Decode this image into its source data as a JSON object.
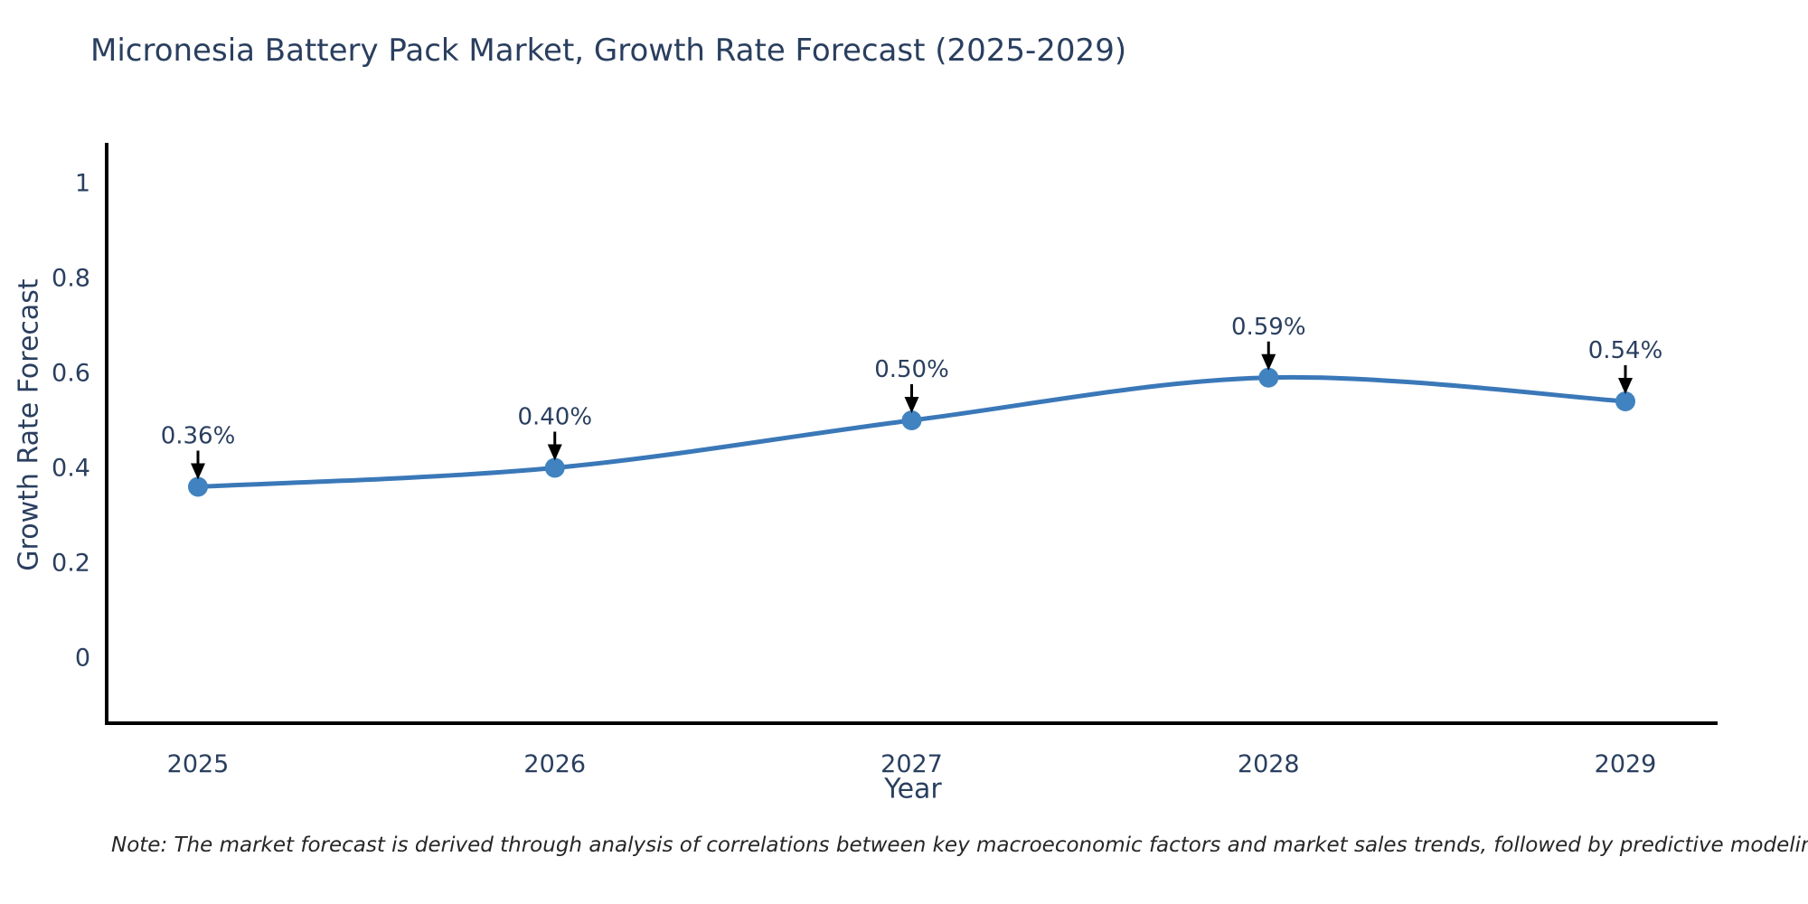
{
  "chart_data": {
    "type": "line",
    "title": "Micronesia Battery Pack Market, Growth Rate Forecast (2025-2029)",
    "xlabel": "Year",
    "ylabel": "Growth Rate Forecast",
    "categories": [
      "2025",
      "2026",
      "2027",
      "2028",
      "2029"
    ],
    "series": [
      {
        "name": "Growth Rate Forecast",
        "values": [
          0.36,
          0.4,
          0.5,
          0.59,
          0.54
        ],
        "point_labels": [
          "0.36%",
          "0.40%",
          "0.50%",
          "0.59%",
          "0.54%"
        ]
      }
    ],
    "y_tick_values": [
      0,
      0.2,
      0.4,
      0.6,
      0.8,
      1
    ],
    "y_tick_labels": [
      "0",
      "0.2",
      "0.4",
      "0.6",
      "0.8",
      "1"
    ],
    "ylim": [
      -0.14,
      1.09
    ],
    "grid": false,
    "legend_position": "none",
    "line_shape": "spline",
    "colors": {
      "line": "#3a78b8",
      "marker": "#4083c0",
      "axis": "#000000",
      "text": "#2a3f5f",
      "annotation_arrow": "#000000"
    }
  },
  "footer": {
    "note": "Note: The market forecast is derived through analysis of correlations between key macroeconomic factors and market sales trends, followed by predictive modeling to project future sales"
  }
}
